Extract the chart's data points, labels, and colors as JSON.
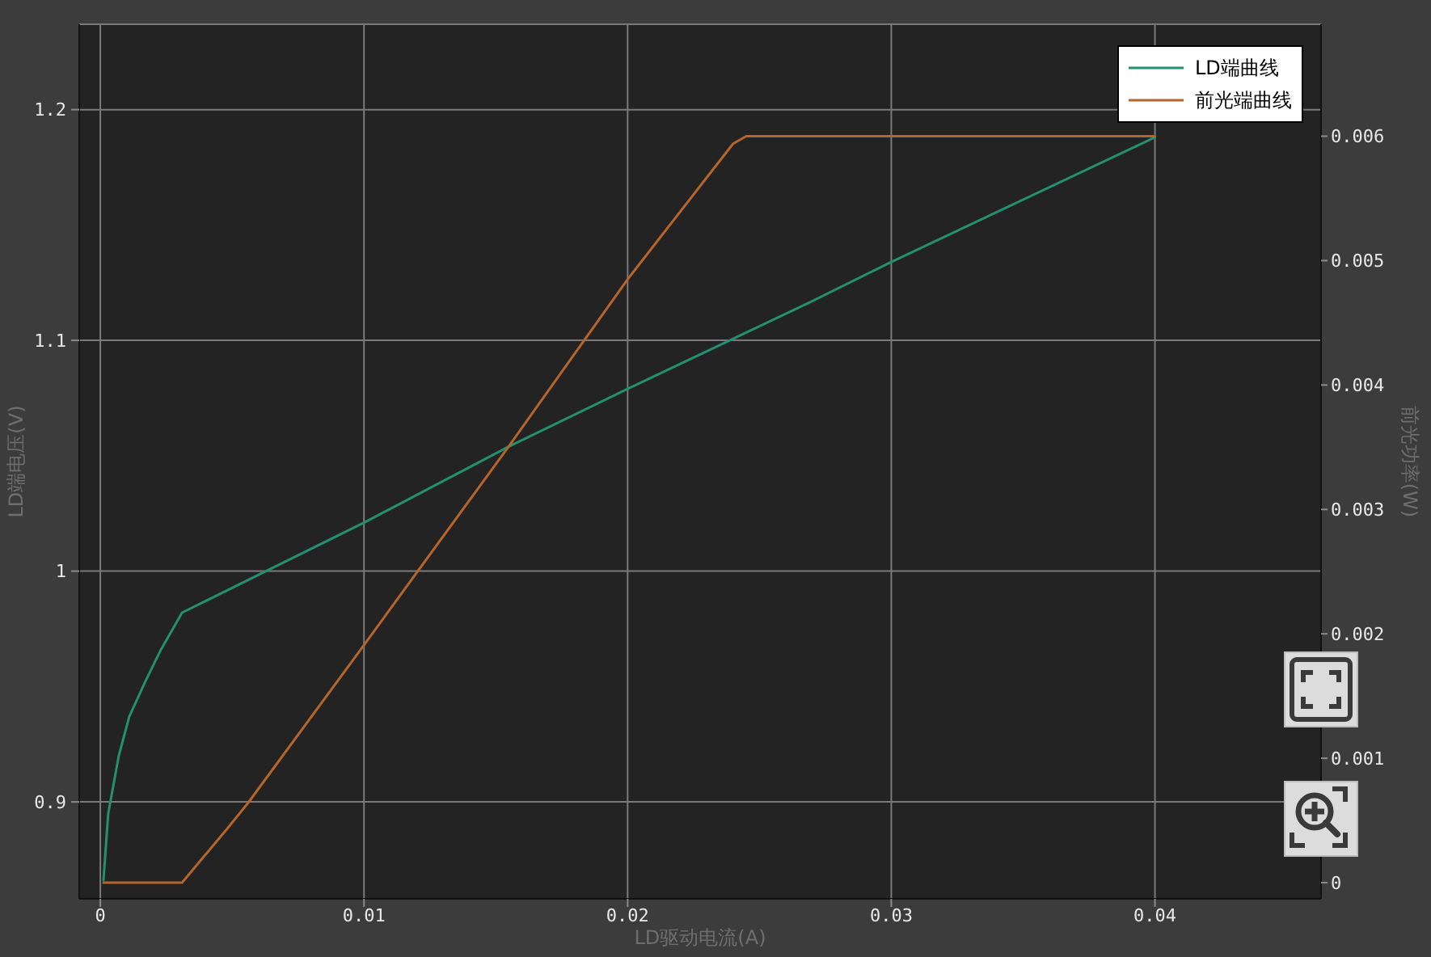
{
  "chart_data": {
    "type": "line",
    "xlabel": "LD驱动电流(A)",
    "ylabel": "LD端电压(V)",
    "y2label": "前光功率(W)",
    "xlim": [
      -0.0008,
      0.0463
    ],
    "xticks": [
      0,
      0.01,
      0.02,
      0.03,
      0.04
    ],
    "ylim": [
      0.858,
      1.237
    ],
    "yticks": [
      0.9,
      1,
      1.1,
      1.2
    ],
    "y2lim": [
      -0.00013,
      0.0069
    ],
    "y2ticks": [
      0,
      0.001,
      0.002,
      0.003,
      0.004,
      0.005,
      0.006
    ],
    "grid": true,
    "legend": "top right",
    "series": [
      {
        "name": "LD端曲线",
        "color": "#23906e",
        "x": [
          0.00012,
          0.0003,
          0.0007,
          0.0011,
          0.0017,
          0.0023,
          0.0031,
          0.01,
          0.0155,
          0.02,
          0.027,
          0.03,
          0.04
        ],
        "values": [
          0.866,
          0.895,
          0.92,
          0.937,
          0.952,
          0.966,
          0.982,
          1.021,
          1.054,
          1.079,
          1.117,
          1.134,
          1.188
        ]
      },
      {
        "name": "前光端曲线",
        "color": "#b5652c",
        "axis": "y2",
        "x": [
          0.00012,
          0.0031,
          0.0048,
          0.0056,
          0.01,
          0.0155,
          0.02,
          0.024,
          0.0245,
          0.04
        ],
        "values": [
          0,
          0,
          0.00043,
          0.00064,
          0.00191,
          0.00351,
          0.00485,
          0.00594,
          0.006,
          0.006
        ]
      }
    ]
  }
}
